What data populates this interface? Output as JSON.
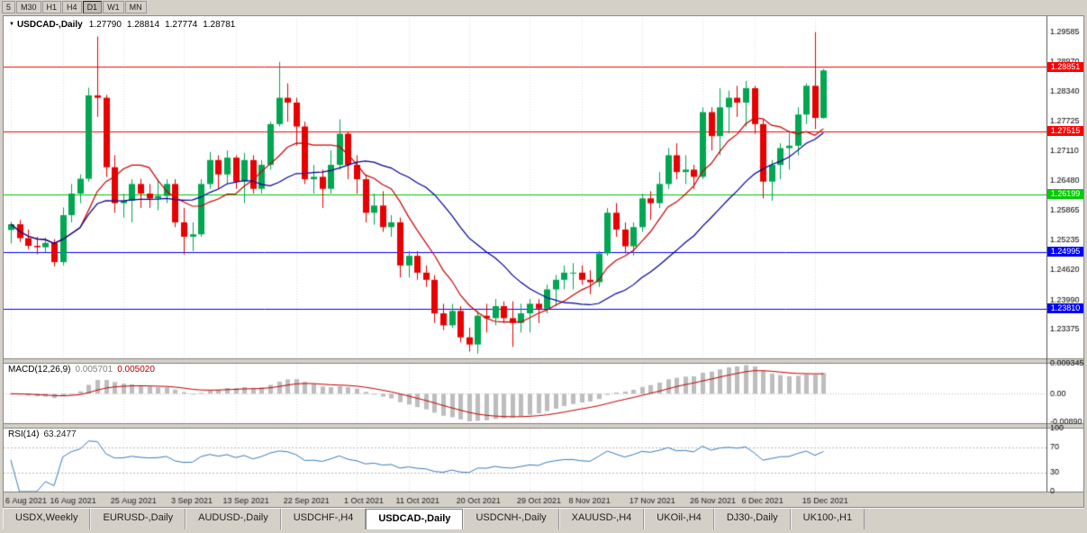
{
  "toolbar": {
    "timeframes": [
      "5",
      "M30",
      "H1",
      "H4",
      "D1",
      "W1",
      "MN"
    ],
    "active": "D1"
  },
  "icons": {
    "expand": "▼"
  },
  "chart": {
    "symbol": "USDCAD-,Daily",
    "open": "1.27790",
    "high": "1.28814",
    "low": "1.27774",
    "close": "1.28781"
  },
  "price_axis": {
    "labels": [
      "1.29585",
      "1.28970",
      "1.28340",
      "1.27725",
      "1.27110",
      "1.26480",
      "1.25865",
      "1.25235",
      "1.24620",
      "1.23990",
      "1.23375"
    ]
  },
  "hlines": [
    {
      "price": 1.28851,
      "label": "1.28851",
      "color": "#FF0000"
    },
    {
      "price": 1.27515,
      "label": "1.27515",
      "color": "#FF0000"
    },
    {
      "price": 1.26199,
      "label": "1.26199",
      "color": "#00CC00"
    },
    {
      "price": 1.24995,
      "label": "1.24995",
      "color": "#0000FF"
    },
    {
      "price": 1.2381,
      "label": "1.23810",
      "color": "#0000FF"
    }
  ],
  "macd": {
    "label": "MACD(12,26,9)",
    "value_main": "0.005701",
    "value_signal": "0.005020",
    "axis_labels": [
      "0.009345",
      "0.00",
      "-0.00890"
    ],
    "hist_color": "#BDBDBD",
    "signal_color": "#C00000"
  },
  "rsi": {
    "label": "RSI(14)",
    "value": "63.2477",
    "axis_labels": [
      "100",
      "70",
      "30",
      "0"
    ],
    "levels": [
      70,
      30
    ],
    "line_color": "#3A7BBF"
  },
  "date_axis": {
    "ticks": [
      {
        "label": "6 Aug 2021",
        "bar": 0
      },
      {
        "label": "16 Aug 2021",
        "bar": 6
      },
      {
        "label": "25 Aug 2021",
        "bar": 13
      },
      {
        "label": "3 Sep 2021",
        "bar": 20
      },
      {
        "label": "13 Sep 2021",
        "bar": 26
      },
      {
        "label": "22 Sep 2021",
        "bar": 33
      },
      {
        "label": "1 Oct 2021",
        "bar": 40
      },
      {
        "label": "11 Oct 2021",
        "bar": 46
      },
      {
        "label": "20 Oct 2021",
        "bar": 53
      },
      {
        "label": "29 Oct 2021",
        "bar": 60
      },
      {
        "label": "8 Nov 2021",
        "bar": 66
      },
      {
        "label": "17 Nov 2021",
        "bar": 73
      },
      {
        "label": "26 Nov 2021",
        "bar": 80
      },
      {
        "label": "6 Dec 2021",
        "bar": 86
      },
      {
        "label": "15 Dec 2021",
        "bar": 93
      }
    ]
  },
  "tabs": [
    {
      "label": "USDX,Weekly",
      "active": false
    },
    {
      "label": "EURUSD-,Daily",
      "active": false
    },
    {
      "label": "AUDUSD-,Daily",
      "active": false
    },
    {
      "label": "USDCHF-,H4",
      "active": false
    },
    {
      "label": "USDCAD-,Daily",
      "active": true
    },
    {
      "label": "USDCNH-,Daily",
      "active": false
    },
    {
      "label": "XAUUSD-,H4",
      "active": false
    },
    {
      "label": "UKOil-,H4",
      "active": false
    },
    {
      "label": "DJ30-,Daily",
      "active": false
    },
    {
      "label": "UK100-,H1",
      "active": false
    }
  ],
  "colors": {
    "chrome": "#D4D0C8",
    "panel_bg": "#FFFFFF",
    "grid": "#DCDCDC",
    "separator": "#808080",
    "axis_text": "#000000",
    "bull": "#00A651",
    "bear": "#E80000"
  },
  "chart_data": {
    "type": "candlestick",
    "symbol": "USDCAD",
    "timeframe": "Daily",
    "price_top": 1.298,
    "price_bottom": 1.2279,
    "macd_scale": {
      "top": 0.009345,
      "bottom": -0.0089
    },
    "indicators": {
      "macd": [
        12,
        26,
        9
      ],
      "rsi_period": 14,
      "ma_overlays": [
        {
          "type": "sma",
          "period": 8,
          "color": "#CC0000"
        },
        {
          "type": "sma",
          "period": 20,
          "color": "#000099"
        }
      ]
    },
    "candles": [
      [
        1.2545,
        1.2562,
        1.2517,
        1.2557
      ],
      [
        1.2557,
        1.2566,
        1.252,
        1.2528
      ],
      [
        1.2528,
        1.2546,
        1.2505,
        1.2512
      ],
      [
        1.2512,
        1.2531,
        1.2494,
        1.2509
      ],
      [
        1.2509,
        1.2529,
        1.2499,
        1.2518
      ],
      [
        1.2518,
        1.2526,
        1.2469,
        1.2478
      ],
      [
        1.2478,
        1.2592,
        1.2471,
        1.2576
      ],
      [
        1.2576,
        1.2641,
        1.2561,
        1.2621
      ],
      [
        1.2621,
        1.2661,
        1.2601,
        1.2652
      ],
      [
        1.2652,
        1.2842,
        1.2646,
        1.2826
      ],
      [
        1.2826,
        1.2949,
        1.2781,
        1.2821
      ],
      [
        1.2821,
        1.2827,
        1.2656,
        1.2676
      ],
      [
        1.2676,
        1.2701,
        1.2581,
        1.2601
      ],
      [
        1.2601,
        1.2621,
        1.2571,
        1.2606
      ],
      [
        1.2606,
        1.2651,
        1.2561,
        1.2641
      ],
      [
        1.2641,
        1.2652,
        1.2591,
        1.2621
      ],
      [
        1.2621,
        1.2641,
        1.2591,
        1.2611
      ],
      [
        1.2611,
        1.2651,
        1.2586,
        1.2616
      ],
      [
        1.2616,
        1.2651,
        1.2601,
        1.2641
      ],
      [
        1.2641,
        1.2651,
        1.2551,
        1.2561
      ],
      [
        1.2561,
        1.2591,
        1.2494,
        1.2531
      ],
      [
        1.2531,
        1.2561,
        1.2501,
        1.2536
      ],
      [
        1.2536,
        1.2651,
        1.2531,
        1.2641
      ],
      [
        1.2641,
        1.2708,
        1.2631,
        1.2691
      ],
      [
        1.2691,
        1.2701,
        1.2631,
        1.2661
      ],
      [
        1.2661,
        1.2711,
        1.2641,
        1.2696
      ],
      [
        1.2696,
        1.2701,
        1.2631,
        1.2646
      ],
      [
        1.2646,
        1.2706,
        1.2601,
        1.2691
      ],
      [
        1.2691,
        1.2701,
        1.2621,
        1.2631
      ],
      [
        1.2631,
        1.2691,
        1.2621,
        1.2681
      ],
      [
        1.2681,
        1.2771,
        1.2671,
        1.2766
      ],
      [
        1.2766,
        1.2896,
        1.2761,
        1.2821
      ],
      [
        1.2821,
        1.2851,
        1.2771,
        1.2811
      ],
      [
        1.2811,
        1.2821,
        1.2721,
        1.2761
      ],
      [
        1.2761,
        1.2771,
        1.2641,
        1.2651
      ],
      [
        1.2651,
        1.2681,
        1.2621,
        1.2656
      ],
      [
        1.2656,
        1.2671,
        1.2591,
        1.2631
      ],
      [
        1.2631,
        1.2711,
        1.2621,
        1.2681
      ],
      [
        1.2681,
        1.2776,
        1.2671,
        1.2746
      ],
      [
        1.2746,
        1.2751,
        1.2651,
        1.2681
      ],
      [
        1.2681,
        1.2701,
        1.2621,
        1.2651
      ],
      [
        1.2651,
        1.2661,
        1.2561,
        1.2581
      ],
      [
        1.2581,
        1.2621,
        1.2556,
        1.2596
      ],
      [
        1.2596,
        1.2626,
        1.2541,
        1.2551
      ],
      [
        1.2551,
        1.2576,
        1.2531,
        1.2561
      ],
      [
        1.2561,
        1.2571,
        1.2446,
        1.2471
      ],
      [
        1.2471,
        1.2501,
        1.2446,
        1.2491
      ],
      [
        1.2491,
        1.2501,
        1.2441,
        1.2456
      ],
      [
        1.2456,
        1.2471,
        1.2426,
        1.2441
      ],
      [
        1.2441,
        1.2451,
        1.2351,
        1.2371
      ],
      [
        1.2371,
        1.2391,
        1.2336,
        1.2346
      ],
      [
        1.2346,
        1.2391,
        1.2341,
        1.2376
      ],
      [
        1.2376,
        1.2386,
        1.2311,
        1.2321
      ],
      [
        1.2321,
        1.2341,
        1.2291,
        1.2306
      ],
      [
        1.2306,
        1.2376,
        1.2287,
        1.2366
      ],
      [
        1.2366,
        1.2391,
        1.2331,
        1.2361
      ],
      [
        1.2361,
        1.2401,
        1.2346,
        1.2386
      ],
      [
        1.2386,
        1.2396,
        1.2351,
        1.2361
      ],
      [
        1.2361,
        1.2396,
        1.2301,
        1.2351
      ],
      [
        1.2351,
        1.2391,
        1.2331,
        1.2371
      ],
      [
        1.2371,
        1.2401,
        1.2331,
        1.2391
      ],
      [
        1.2391,
        1.2401,
        1.2351,
        1.2381
      ],
      [
        1.2381,
        1.2431,
        1.2371,
        1.2421
      ],
      [
        1.2421,
        1.2451,
        1.2386,
        1.2441
      ],
      [
        1.2441,
        1.2471,
        1.2421,
        1.2456
      ],
      [
        1.2456,
        1.2476,
        1.2421,
        1.2456
      ],
      [
        1.2456,
        1.2471,
        1.2431,
        1.2441
      ],
      [
        1.2441,
        1.2461,
        1.2411,
        1.2436
      ],
      [
        1.2436,
        1.2501,
        1.2426,
        1.2496
      ],
      [
        1.2496,
        1.2591,
        1.2491,
        1.2581
      ],
      [
        1.2581,
        1.2601,
        1.2531,
        1.2546
      ],
      [
        1.2546,
        1.2561,
        1.2496,
        1.2511
      ],
      [
        1.2511,
        1.2561,
        1.2491,
        1.2551
      ],
      [
        1.2551,
        1.2621,
        1.2541,
        1.2611
      ],
      [
        1.2611,
        1.2626,
        1.2566,
        1.2601
      ],
      [
        1.2601,
        1.2666,
        1.2591,
        1.2641
      ],
      [
        1.2641,
        1.2716,
        1.2631,
        1.2701
      ],
      [
        1.2701,
        1.2726,
        1.2651,
        1.2666
      ],
      [
        1.2666,
        1.2701,
        1.2641,
        1.2671
      ],
      [
        1.2671,
        1.2681,
        1.2631,
        1.2656
      ],
      [
        1.2656,
        1.2801,
        1.2651,
        1.2791
      ],
      [
        1.2791,
        1.2801,
        1.2711,
        1.2741
      ],
      [
        1.2741,
        1.2841,
        1.2701,
        1.2801
      ],
      [
        1.2801,
        1.2836,
        1.2746,
        1.2821
      ],
      [
        1.2821,
        1.2846,
        1.2781,
        1.2811
      ],
      [
        1.2811,
        1.2856,
        1.2761,
        1.2841
      ],
      [
        1.2841,
        1.2846,
        1.2746,
        1.2766
      ],
      [
        1.2766,
        1.2776,
        1.2611,
        1.2646
      ],
      [
        1.2646,
        1.2691,
        1.2606,
        1.2681
      ],
      [
        1.2681,
        1.2726,
        1.2651,
        1.2716
      ],
      [
        1.2716,
        1.2751,
        1.2671,
        1.2721
      ],
      [
        1.2721,
        1.2801,
        1.2701,
        1.2786
      ],
      [
        1.2786,
        1.2851,
        1.2766,
        1.2846
      ],
      [
        1.2846,
        1.2958,
        1.2756,
        1.2779
      ],
      [
        1.2779,
        1.28814,
        1.27774,
        1.28781
      ]
    ]
  }
}
